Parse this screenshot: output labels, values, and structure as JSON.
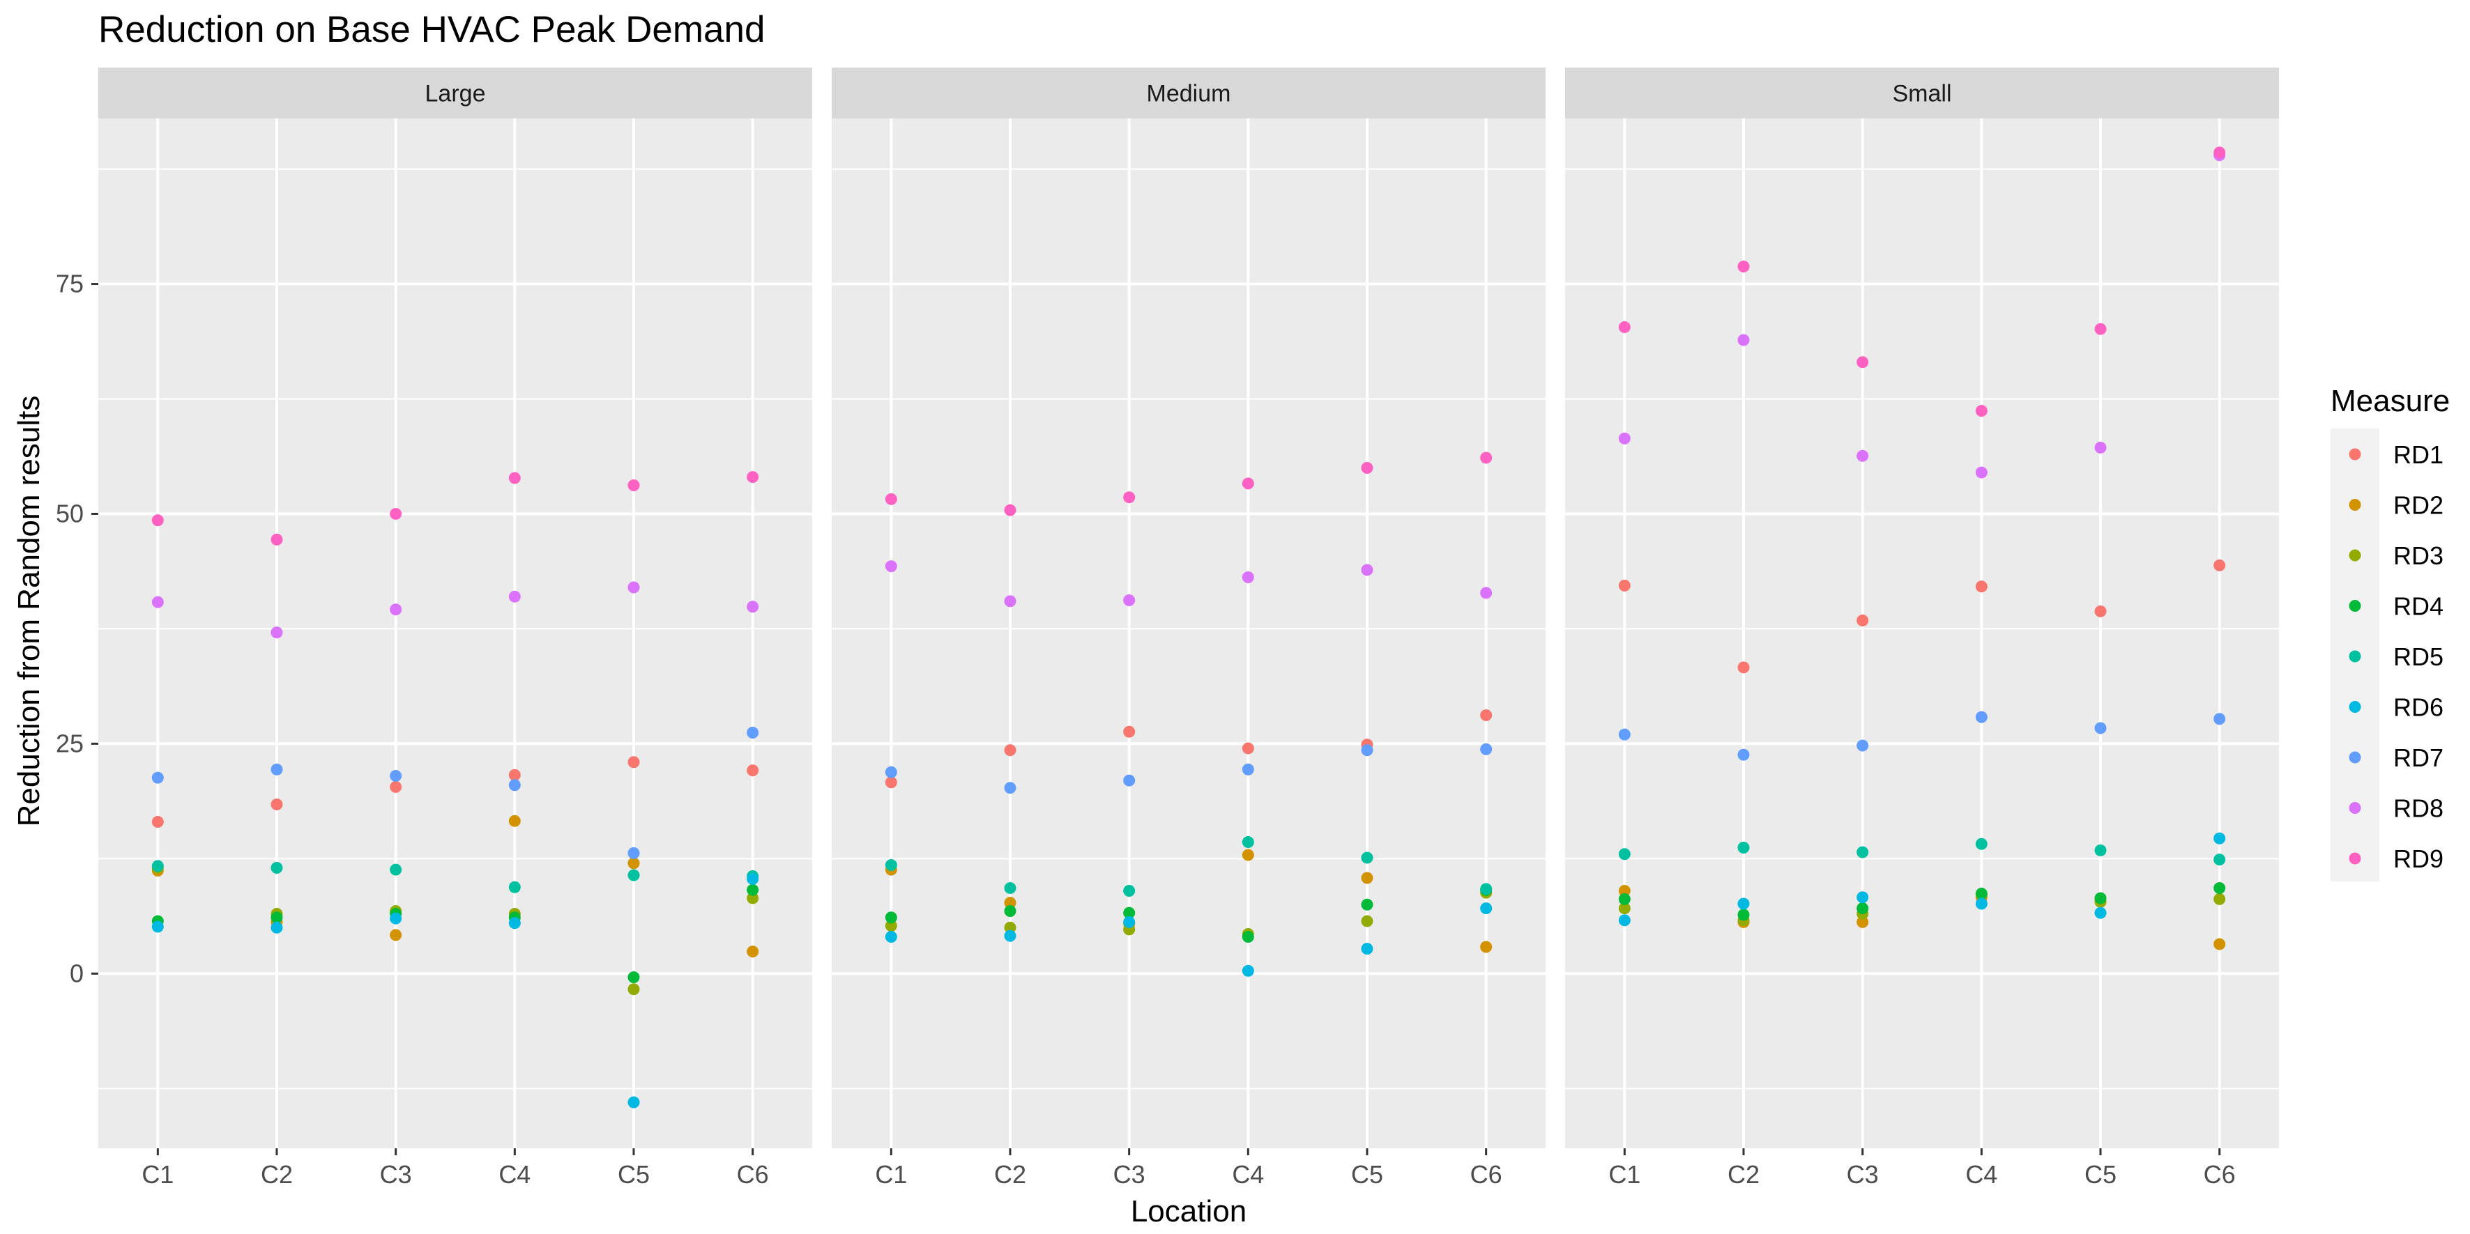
{
  "chart_data": {
    "type": "scatter",
    "title": "Reduction on Base HVAC Peak Demand",
    "xlabel": "Location",
    "ylabel": "Reduction from Random results",
    "categories": [
      "C1",
      "C2",
      "C3",
      "C4",
      "C5",
      "C6"
    ],
    "y_ticks": [
      "0",
      "25",
      "50",
      "75"
    ],
    "ylim": [
      -19,
      93
    ],
    "grid": true,
    "legend": {
      "title": "Measure",
      "position": "right",
      "entries": [
        "RD1",
        "RD2",
        "RD3",
        "RD4",
        "RD5",
        "RD6",
        "RD7",
        "RD8",
        "RD9"
      ]
    },
    "colors": {
      "RD1": "#F8766D",
      "RD2": "#D39200",
      "RD3": "#93AA00",
      "RD4": "#00BA38",
      "RD5": "#00C19F",
      "RD6": "#00B9E3",
      "RD7": "#619CFF",
      "RD8": "#DB72FB",
      "RD9": "#FF61C3"
    },
    "panel_background": "#EBEBEB",
    "strip_background": "#D9D9D9",
    "panels": [
      {
        "name": "Large",
        "series": [
          {
            "name": "RD1",
            "values": [
              16.5,
              18.4,
              20.3,
              21.6,
              23.0,
              22.1
            ]
          },
          {
            "name": "RD2",
            "values": [
              11.2,
              5.6,
              4.2,
              16.6,
              12.0,
              2.4
            ]
          },
          {
            "name": "RD3",
            "values": [
              11.5,
              6.5,
              6.8,
              6.5,
              -1.7,
              8.2
            ]
          },
          {
            "name": "RD4",
            "values": [
              5.7,
              6.1,
              6.5,
              6.1,
              -0.4,
              9.1
            ]
          },
          {
            "name": "RD5",
            "values": [
              11.7,
              11.5,
              11.3,
              9.4,
              10.7,
              10.6
            ]
          },
          {
            "name": "RD6",
            "values": [
              5.1,
              5.0,
              6.0,
              5.5,
              -14.0,
              10.3
            ]
          },
          {
            "name": "RD7",
            "values": [
              21.3,
              22.2,
              21.5,
              20.5,
              13.1,
              26.2
            ]
          },
          {
            "name": "RD8",
            "values": [
              40.4,
              37.1,
              39.6,
              41.0,
              42.0,
              39.9
            ]
          },
          {
            "name": "RD9",
            "values": [
              49.3,
              47.2,
              50.0,
              53.9,
              53.1,
              54.0
            ]
          }
        ]
      },
      {
        "name": "Medium",
        "series": [
          {
            "name": "RD1",
            "values": [
              20.8,
              24.3,
              26.3,
              24.5,
              24.9,
              28.1
            ]
          },
          {
            "name": "RD2",
            "values": [
              11.3,
              7.7,
              5.4,
              12.9,
              10.4,
              2.9
            ]
          },
          {
            "name": "RD3",
            "values": [
              5.2,
              5.0,
              4.8,
              4.3,
              5.7,
              8.8
            ]
          },
          {
            "name": "RD4",
            "values": [
              6.1,
              6.8,
              6.6,
              4.0,
              7.5,
              9.1
            ]
          },
          {
            "name": "RD5",
            "values": [
              11.8,
              9.3,
              9.0,
              14.3,
              12.6,
              9.2
            ]
          },
          {
            "name": "RD6",
            "values": [
              4.0,
              4.1,
              5.6,
              0.3,
              2.7,
              7.1
            ]
          },
          {
            "name": "RD7",
            "values": [
              21.9,
              20.2,
              21.0,
              22.2,
              24.3,
              24.4
            ]
          },
          {
            "name": "RD8",
            "values": [
              44.3,
              40.5,
              40.6,
              43.1,
              43.9,
              41.4
            ]
          },
          {
            "name": "RD9",
            "values": [
              51.6,
              50.4,
              51.8,
              53.3,
              55.0,
              56.1
            ]
          }
        ]
      },
      {
        "name": "Small",
        "series": [
          {
            "name": "RD1",
            "values": [
              42.2,
              33.3,
              38.4,
              42.1,
              39.4,
              44.4
            ]
          },
          {
            "name": "RD2",
            "values": [
              9.0,
              5.6,
              5.6,
              8.3,
              7.9,
              3.2
            ]
          },
          {
            "name": "RD3",
            "values": [
              7.1,
              5.8,
              6.5,
              8.6,
              7.8,
              8.1
            ]
          },
          {
            "name": "RD4",
            "values": [
              8.1,
              6.4,
              7.1,
              8.7,
              8.2,
              9.3
            ]
          },
          {
            "name": "RD5",
            "values": [
              13.0,
              13.7,
              13.2,
              14.1,
              13.4,
              12.4
            ]
          },
          {
            "name": "RD6",
            "values": [
              5.8,
              7.6,
              8.3,
              7.6,
              6.6,
              14.7
            ]
          },
          {
            "name": "RD7",
            "values": [
              26.0,
              23.8,
              24.8,
              27.9,
              26.7,
              27.7
            ]
          },
          {
            "name": "RD8",
            "values": [
              58.2,
              68.9,
              56.3,
              54.5,
              57.2,
              89.0
            ]
          },
          {
            "name": "RD9",
            "values": [
              70.3,
              76.9,
              66.5,
              61.2,
              70.1,
              89.3
            ]
          }
        ]
      }
    ]
  }
}
